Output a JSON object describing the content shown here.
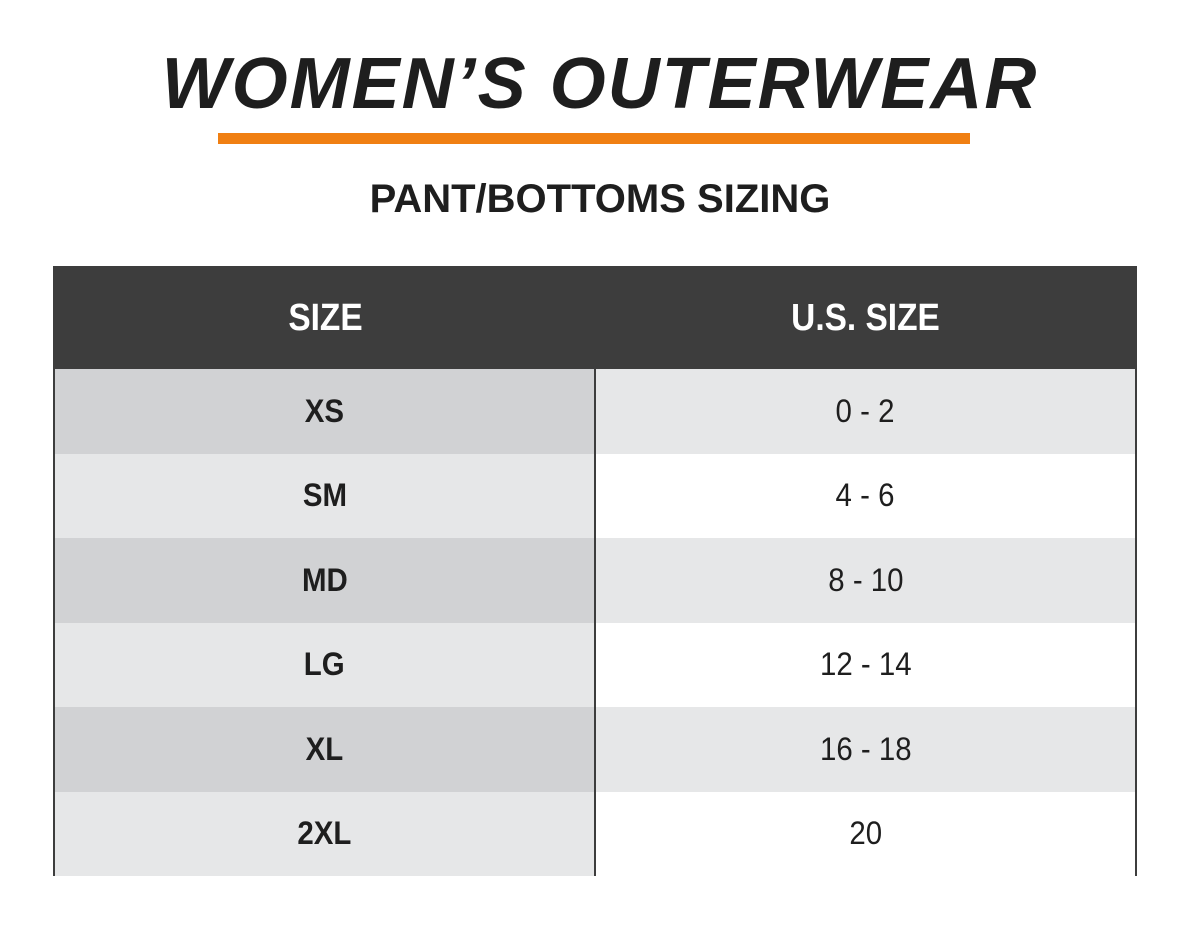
{
  "title": "WOMEN’S OUTERWEAR",
  "subtitle": "PANT/BOTTOMS SIZING",
  "colors": {
    "accent": "#f07f12",
    "header_bg": "#3d3d3d",
    "row_left_dark": "#d1d2d4",
    "row_left_light": "#e6e7e8",
    "row_right_dark": "#e6e7e8",
    "row_right_light": "#ffffff"
  },
  "table": {
    "headers": [
      "SIZE",
      "U.S. SIZE"
    ],
    "rows": [
      {
        "size": "XS",
        "us_size": "0 - 2"
      },
      {
        "size": "SM",
        "us_size": "4 - 6"
      },
      {
        "size": "MD",
        "us_size": "8 - 10"
      },
      {
        "size": "LG",
        "us_size": "12 - 14"
      },
      {
        "size": "XL",
        "us_size": "16 - 18"
      },
      {
        "size": "2XL",
        "us_size": "20"
      }
    ]
  }
}
